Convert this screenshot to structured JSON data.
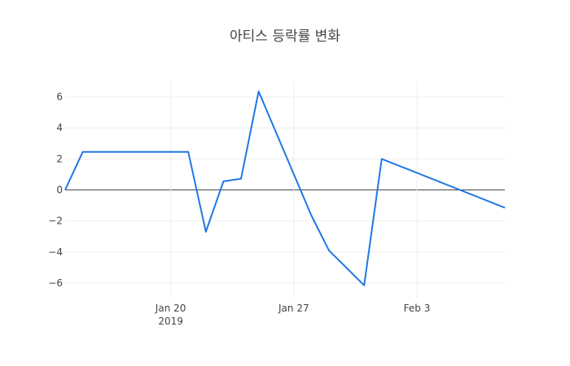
{
  "chart_data": {
    "type": "line",
    "title": "아티스 등락률 변화",
    "xlabel": "",
    "ylabel": "",
    "x_range": [
      "2019-01-14",
      "2019-02-08"
    ],
    "ylim": [
      -7,
      7
    ],
    "grid": true,
    "legend": "none",
    "x_ticks": [
      {
        "date": "2019-01-20",
        "label": "Jan 20",
        "sublabel": "2019"
      },
      {
        "date": "2019-01-27",
        "label": "Jan 27",
        "sublabel": ""
      },
      {
        "date": "2019-02-03",
        "label": "Feb 3",
        "sublabel": ""
      }
    ],
    "y_ticks": [
      -6,
      -4,
      -2,
      0,
      2,
      4,
      6
    ],
    "y_tick_labels": [
      "−6",
      "−4",
      "−2",
      "0",
      "2",
      "4",
      "6"
    ],
    "series": [
      {
        "color": "#1f77e4",
        "x": [
          "2019-01-14",
          "2019-01-15",
          "2019-01-21",
          "2019-01-22",
          "2019-01-23",
          "2019-01-24",
          "2019-01-25",
          "2019-01-28",
          "2019-01-29",
          "2019-01-31",
          "2019-02-01",
          "2019-02-08"
        ],
        "y": [
          0.0,
          2.45,
          2.45,
          -2.7,
          0.55,
          0.72,
          6.35,
          -1.65,
          -3.9,
          -6.15,
          2.0,
          -1.15
        ]
      }
    ]
  }
}
